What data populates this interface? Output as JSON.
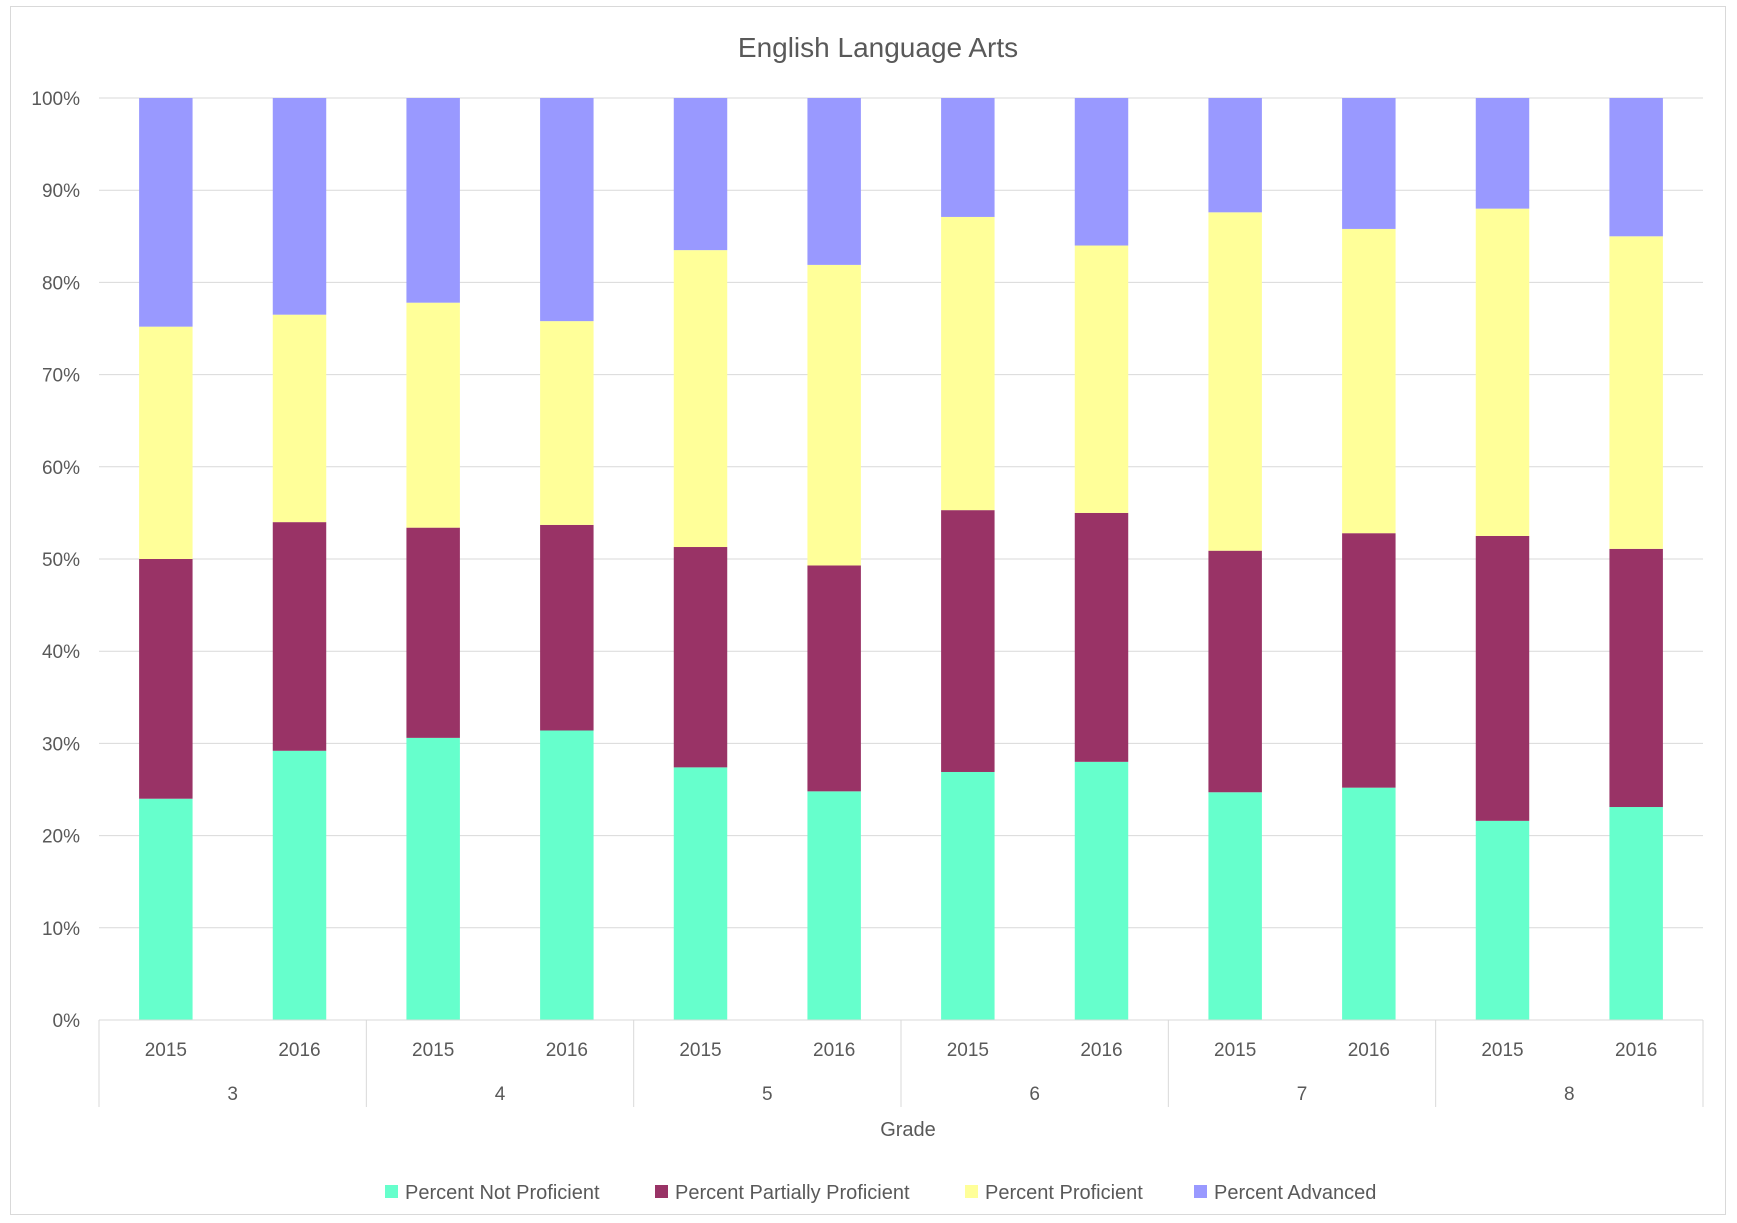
{
  "chart_data": {
    "type": "bar",
    "stacked": true,
    "title": "English Language Arts",
    "xlabel": "Grade",
    "ylabel": "",
    "ylim": [
      0,
      100
    ],
    "y_ticks": [
      "0%",
      "10%",
      "20%",
      "30%",
      "40%",
      "50%",
      "60%",
      "70%",
      "80%",
      "90%",
      "100%"
    ],
    "groups": [
      "3",
      "4",
      "5",
      "6",
      "7",
      "8"
    ],
    "categories": [
      "2015",
      "2016",
      "2015",
      "2016",
      "2015",
      "2016",
      "2015",
      "2016",
      "2015",
      "2016",
      "2015",
      "2016"
    ],
    "legend_position": "bottom",
    "grid": true,
    "series": [
      {
        "name": "Percent Not Proficient",
        "color": "#66ffcc",
        "values": [
          24.0,
          29.2,
          30.6,
          31.4,
          27.4,
          24.8,
          26.9,
          28.0,
          24.7,
          25.2,
          21.6,
          23.1
        ]
      },
      {
        "name": "Percent Partially Proficient",
        "color": "#993366",
        "values": [
          26.0,
          24.8,
          22.8,
          22.3,
          23.9,
          24.5,
          28.4,
          27.0,
          26.2,
          27.6,
          30.9,
          28.0
        ]
      },
      {
        "name": "Percent Proficient",
        "color": "#ffff99",
        "values": [
          25.2,
          22.5,
          24.4,
          22.1,
          32.2,
          32.6,
          31.8,
          29.0,
          36.7,
          33.0,
          35.5,
          33.9
        ]
      },
      {
        "name": "Percent Advanced",
        "color": "#9999ff",
        "values": [
          24.8,
          23.5,
          22.2,
          24.2,
          16.5,
          18.1,
          12.9,
          16.0,
          12.4,
          14.2,
          12.0,
          15.0
        ]
      }
    ]
  }
}
